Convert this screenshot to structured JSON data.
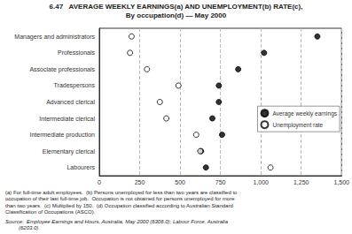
{
  "chart_data": {
    "type": "scatter",
    "orientation": "horizontal",
    "title": "6.47   AVERAGE WEEKLY EARNINGS(a) AND UNEMPLOYMENT(b) RATE(c),",
    "subtitle": "By occupation(d) — May 2000",
    "categories": [
      "Managers and administrators",
      "Professionals",
      "Associate professionals",
      "Tradespersons",
      "Advanced clerical",
      "Intermediate clerical",
      "Intermediate production",
      "Elementary clerical",
      "Labourers"
    ],
    "series": [
      {
        "name": "Average weekly earnings",
        "color": "#000000",
        "marker": "filled",
        "values": [
          1350,
          1020,
          860,
          740,
          740,
          700,
          760,
          630,
          660
        ]
      },
      {
        "name": "Unemployment rate",
        "color": "#000000",
        "marker": "open",
        "values": [
          200,
          190,
          295,
          490,
          375,
          415,
          600,
          625,
          1060
        ]
      }
    ],
    "xlim": [
      0,
      1500
    ],
    "xticks": [
      0,
      250,
      500,
      750,
      1000,
      1250,
      1500
    ],
    "grid": true,
    "legend": "right",
    "annotations": [
      "(a) For full-time adult employees.  (b) Persons unemployed for less than two years are classified to\noccupation of their last full-time job.  Occupation is not obtained for persons unemployed for more\nthan two years.  (c) Multiplied by 150.  (d) Occupation classified according to Australian Standard\nClassification of Occupations (ASCO).",
      "Source:  Employee Earnings and Hours, Australia, May 2000 (6306.0); Labour Force, Australia\n         (6203.0)."
    ]
  }
}
